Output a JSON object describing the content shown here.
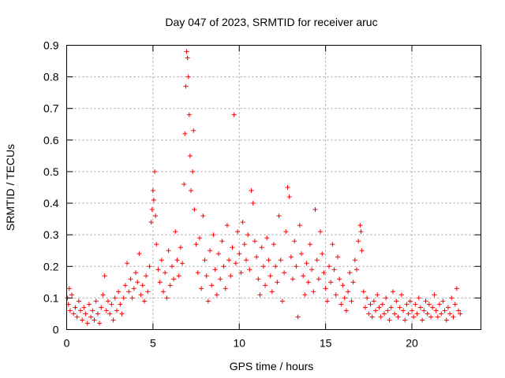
{
  "chart_data": {
    "type": "scatter",
    "title": "Day 047 of 2023, SRMTID for receiver aruc",
    "xlabel": "GPS time / hours",
    "ylabel": "SRMTID / TECUs",
    "xlim": [
      0,
      24
    ],
    "ylim": [
      0,
      0.9
    ],
    "x_ticks": [
      0,
      5,
      10,
      15,
      20
    ],
    "x_tick_labels": [
      "0",
      "5",
      "10",
      "15",
      "20"
    ],
    "y_ticks": [
      0,
      0.1,
      0.2,
      0.3,
      0.4,
      0.5,
      0.6,
      0.7,
      0.8,
      0.9
    ],
    "y_tick_labels": [
      "0",
      "0.1",
      "0.2",
      "0.3",
      "0.4",
      "0.5",
      "0.6",
      "0.7",
      "0.8",
      "0.9"
    ],
    "grid": true,
    "marker": "+",
    "color": "#ff0000",
    "series": [
      {
        "name": "SRMTID",
        "points": [
          [
            0.05,
            0.1
          ],
          [
            0.1,
            0.08
          ],
          [
            0.15,
            0.13
          ],
          [
            0.2,
            0.06
          ],
          [
            0.3,
            0.11
          ],
          [
            0.4,
            0.05
          ],
          [
            0.5,
            0.07
          ],
          [
            0.6,
            0.04
          ],
          [
            0.7,
            0.09
          ],
          [
            0.8,
            0.06
          ],
          [
            0.9,
            0.03
          ],
          [
            1.0,
            0.07
          ],
          [
            1.1,
            0.05
          ],
          [
            1.2,
            0.02
          ],
          [
            1.3,
            0.08
          ],
          [
            1.4,
            0.04
          ],
          [
            1.5,
            0.06
          ],
          [
            1.6,
            0.03
          ],
          [
            1.7,
            0.09
          ],
          [
            1.8,
            0.05
          ],
          [
            1.9,
            0.02
          ],
          [
            2.0,
            0.07
          ],
          [
            2.1,
            0.11
          ],
          [
            2.2,
            0.17
          ],
          [
            2.3,
            0.06
          ],
          [
            2.4,
            0.09
          ],
          [
            2.5,
            0.05
          ],
          [
            2.6,
            0.08
          ],
          [
            2.7,
            0.03
          ],
          [
            2.8,
            0.1
          ],
          [
            2.9,
            0.06
          ],
          [
            3.0,
            0.12
          ],
          [
            3.1,
            0.08
          ],
          [
            3.2,
            0.05
          ],
          [
            3.3,
            0.1
          ],
          [
            3.4,
            0.14
          ],
          [
            3.5,
            0.21
          ],
          [
            3.6,
            0.12
          ],
          [
            3.7,
            0.16
          ],
          [
            3.8,
            0.1
          ],
          [
            3.9,
            0.13
          ],
          [
            4.0,
            0.18
          ],
          [
            4.1,
            0.15
          ],
          [
            4.2,
            0.24
          ],
          [
            4.3,
            0.11
          ],
          [
            4.4,
            0.14
          ],
          [
            4.5,
            0.09
          ],
          [
            4.6,
            0.17
          ],
          [
            4.7,
            0.12
          ],
          [
            4.8,
            0.2
          ],
          [
            4.9,
            0.34
          ],
          [
            4.95,
            0.38
          ],
          [
            5.0,
            0.44
          ],
          [
            5.05,
            0.41
          ],
          [
            5.1,
            0.5
          ],
          [
            5.15,
            0.36
          ],
          [
            5.2,
            0.27
          ],
          [
            5.3,
            0.19
          ],
          [
            5.4,
            0.15
          ],
          [
            5.5,
            0.22
          ],
          [
            5.6,
            0.12
          ],
          [
            5.7,
            0.18
          ],
          [
            5.8,
            0.1
          ],
          [
            5.9,
            0.25
          ],
          [
            6.0,
            0.14
          ],
          [
            6.1,
            0.2
          ],
          [
            6.2,
            0.16
          ],
          [
            6.3,
            0.31
          ],
          [
            6.4,
            0.22
          ],
          [
            6.5,
            0.17
          ],
          [
            6.6,
            0.26
          ],
          [
            6.7,
            0.21
          ],
          [
            6.8,
            0.46
          ],
          [
            6.85,
            0.62
          ],
          [
            6.9,
            0.77
          ],
          [
            6.95,
            0.88
          ],
          [
            7.0,
            0.86
          ],
          [
            7.05,
            0.8
          ],
          [
            7.1,
            0.68
          ],
          [
            7.15,
            0.55
          ],
          [
            7.2,
            0.44
          ],
          [
            7.3,
            0.5
          ],
          [
            7.35,
            0.63
          ],
          [
            7.4,
            0.38
          ],
          [
            7.5,
            0.27
          ],
          [
            7.6,
            0.18
          ],
          [
            7.7,
            0.29
          ],
          [
            7.8,
            0.13
          ],
          [
            7.9,
            0.36
          ],
          [
            8.0,
            0.22
          ],
          [
            8.1,
            0.17
          ],
          [
            8.2,
            0.09
          ],
          [
            8.3,
            0.25
          ],
          [
            8.4,
            0.14
          ],
          [
            8.5,
            0.3
          ],
          [
            8.6,
            0.19
          ],
          [
            8.7,
            0.11
          ],
          [
            8.8,
            0.24
          ],
          [
            8.9,
            0.16
          ],
          [
            9.0,
            0.28
          ],
          [
            9.1,
            0.2
          ],
          [
            9.2,
            0.13
          ],
          [
            9.3,
            0.33
          ],
          [
            9.4,
            0.22
          ],
          [
            9.5,
            0.17
          ],
          [
            9.6,
            0.26
          ],
          [
            9.7,
            0.68
          ],
          [
            9.8,
            0.21
          ],
          [
            9.9,
            0.31
          ],
          [
            10.0,
            0.24
          ],
          [
            10.1,
            0.18
          ],
          [
            10.2,
            0.34
          ],
          [
            10.3,
            0.27
          ],
          [
            10.4,
            0.22
          ],
          [
            10.5,
            0.3
          ],
          [
            10.6,
            0.19
          ],
          [
            10.7,
            0.44
          ],
          [
            10.8,
            0.4
          ],
          [
            10.9,
            0.28
          ],
          [
            11.0,
            0.23
          ],
          [
            11.1,
            0.16
          ],
          [
            11.2,
            0.11
          ],
          [
            11.3,
            0.26
          ],
          [
            11.4,
            0.2
          ],
          [
            11.5,
            0.14
          ],
          [
            11.6,
            0.29
          ],
          [
            11.7,
            0.22
          ],
          [
            11.8,
            0.17
          ],
          [
            11.9,
            0.12
          ],
          [
            12.0,
            0.27
          ],
          [
            12.1,
            0.2
          ],
          [
            12.2,
            0.15
          ],
          [
            12.3,
            0.36
          ],
          [
            12.4,
            0.22
          ],
          [
            12.5,
            0.09
          ],
          [
            12.6,
            0.18
          ],
          [
            12.7,
            0.31
          ],
          [
            12.8,
            0.45
          ],
          [
            12.9,
            0.42
          ],
          [
            13.0,
            0.23
          ],
          [
            13.1,
            0.16
          ],
          [
            13.2,
            0.28
          ],
          [
            13.3,
            0.2
          ],
          [
            13.4,
            0.04
          ],
          [
            13.5,
            0.33
          ],
          [
            13.6,
            0.24
          ],
          [
            13.7,
            0.17
          ],
          [
            13.8,
            0.11
          ],
          [
            13.9,
            0.21
          ],
          [
            14.0,
            0.15
          ],
          [
            14.1,
            0.27
          ],
          [
            14.2,
            0.19
          ],
          [
            14.3,
            0.12
          ],
          [
            14.4,
            0.38
          ],
          [
            14.5,
            0.22
          ],
          [
            14.6,
            0.16
          ],
          [
            14.7,
            0.31
          ],
          [
            14.8,
            0.24
          ],
          [
            14.9,
            0.18
          ],
          [
            15.0,
            0.13
          ],
          [
            15.1,
            0.09
          ],
          [
            15.2,
            0.2
          ],
          [
            15.3,
            0.15
          ],
          [
            15.4,
            0.27
          ],
          [
            15.5,
            0.19
          ],
          [
            15.6,
            0.11
          ],
          [
            15.7,
            0.23
          ],
          [
            15.8,
            0.16
          ],
          [
            15.9,
            0.08
          ],
          [
            16.0,
            0.14
          ],
          [
            16.1,
            0.1
          ],
          [
            16.2,
            0.06
          ],
          [
            16.3,
            0.12
          ],
          [
            16.4,
            0.18
          ],
          [
            16.5,
            0.09
          ],
          [
            16.6,
            0.15
          ],
          [
            16.7,
            0.22
          ],
          [
            16.8,
            0.19
          ],
          [
            16.9,
            0.28
          ],
          [
            17.0,
            0.33
          ],
          [
            17.05,
            0.31
          ],
          [
            17.1,
            0.25
          ],
          [
            17.2,
            0.12
          ],
          [
            17.3,
            0.07
          ],
          [
            17.4,
            0.1
          ],
          [
            17.5,
            0.05
          ],
          [
            17.6,
            0.08
          ],
          [
            17.7,
            0.04
          ],
          [
            17.8,
            0.09
          ],
          [
            17.9,
            0.06
          ],
          [
            18.0,
            0.11
          ],
          [
            18.1,
            0.07
          ],
          [
            18.2,
            0.04
          ],
          [
            18.3,
            0.08
          ],
          [
            18.4,
            0.05
          ],
          [
            18.5,
            0.1
          ],
          [
            18.6,
            0.06
          ],
          [
            18.7,
            0.03
          ],
          [
            18.8,
            0.07
          ],
          [
            18.9,
            0.12
          ],
          [
            19.0,
            0.05
          ],
          [
            19.1,
            0.09
          ],
          [
            19.2,
            0.04
          ],
          [
            19.3,
            0.07
          ],
          [
            19.4,
            0.11
          ],
          [
            19.5,
            0.06
          ],
          [
            19.6,
            0.03
          ],
          [
            19.7,
            0.08
          ],
          [
            19.8,
            0.05
          ],
          [
            19.9,
            0.09
          ],
          [
            20.0,
            0.06
          ],
          [
            20.1,
            0.04
          ],
          [
            20.2,
            0.08
          ],
          [
            20.3,
            0.05
          ],
          [
            20.4,
            0.1
          ],
          [
            20.5,
            0.07
          ],
          [
            20.6,
            0.03
          ],
          [
            20.7,
            0.06
          ],
          [
            20.8,
            0.09
          ],
          [
            20.9,
            0.05
          ],
          [
            21.0,
            0.08
          ],
          [
            21.1,
            0.04
          ],
          [
            21.2,
            0.07
          ],
          [
            21.3,
            0.11
          ],
          [
            21.4,
            0.06
          ],
          [
            21.5,
            0.04
          ],
          [
            21.6,
            0.08
          ],
          [
            21.7,
            0.05
          ],
          [
            21.8,
            0.09
          ],
          [
            21.9,
            0.06
          ],
          [
            22.0,
            0.03
          ],
          [
            22.1,
            0.07
          ],
          [
            22.2,
            0.05
          ],
          [
            22.3,
            0.1
          ],
          [
            22.4,
            0.04
          ],
          [
            22.5,
            0.08
          ],
          [
            22.6,
            0.13
          ],
          [
            22.7,
            0.06
          ],
          [
            22.8,
            0.05
          ]
        ]
      }
    ]
  }
}
